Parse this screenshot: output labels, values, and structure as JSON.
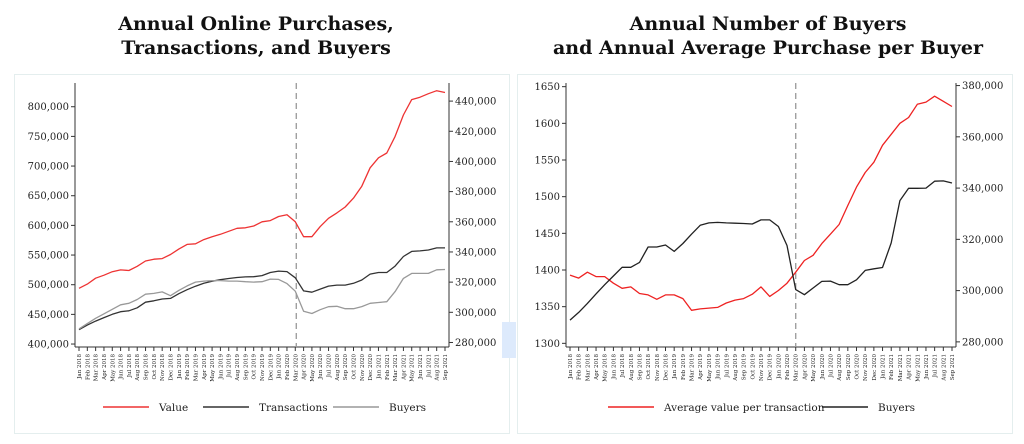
{
  "chart_data": [
    {
      "type": "line",
      "title": "Annual Online Purchases,\nTransactions, and Buyers",
      "title_lines": [
        "Annual Online Purchases,",
        "Transactions, and Buyers"
      ],
      "xlabel": "",
      "x": [
        "Jan 2018",
        "Feb 2018",
        "Mar 2018",
        "Apr 2018",
        "May 2018",
        "Jun 2018",
        "Jul 2018",
        "Aug 2018",
        "Sep 2018",
        "Oct 2018",
        "Nov 2018",
        "Dec 2018",
        "Jan 2019",
        "Feb 2019",
        "Mar 2019",
        "Apr 2019",
        "May 2019",
        "Jun 2019",
        "Jul 2019",
        "Aug 2019",
        "Sep 2019",
        "Oct 2019",
        "Nov 2019",
        "Dec 2019",
        "Jan 2020",
        "Feb 2020",
        "Mar 2020",
        "Apr 2020",
        "May 2020",
        "Jun 2020",
        "Jul 2020",
        "Aug 2020",
        "Sep 2020",
        "Oct 2020",
        "Nov 2020",
        "Dec 2020",
        "Jan 2021",
        "Feb 2021",
        "Mar 2021",
        "Apr 2021",
        "May 2021",
        "Jun 2021",
        "Jul 2021",
        "Aug 2021",
        "Sep 2021"
      ],
      "vline_at": "Mar 2020",
      "y_left": {
        "label": "",
        "lim": [
          395000,
          840000
        ],
        "ticks": [
          400000,
          450000,
          500000,
          550000,
          600000,
          650000,
          700000,
          750000,
          800000
        ],
        "tick_labels": [
          "400,000",
          "450,000",
          "500,000",
          "550,000",
          "600,000",
          "650,000",
          "700,000",
          "750,000",
          "800,000"
        ]
      },
      "y_right": {
        "label": "",
        "lim": [
          277000,
          452000
        ],
        "ticks": [
          280000,
          300000,
          320000,
          340000,
          360000,
          380000,
          400000,
          420000,
          440000
        ],
        "tick_labels": [
          "280,000",
          "300,000",
          "320,000",
          "340,000",
          "360,000",
          "380,000",
          "400,000",
          "420,000",
          "440,000"
        ]
      },
      "series": [
        {
          "name": "Value",
          "axis": "left",
          "color": "#ee3333",
          "values": [
            494000,
            501000,
            511000,
            516000,
            522000,
            525000,
            524000,
            531000,
            540000,
            543000,
            544000,
            551000,
            560000,
            568000,
            569000,
            576000,
            581000,
            585000,
            590000,
            595000,
            596000,
            599000,
            606000,
            608000,
            615000,
            618000,
            606000,
            581000,
            581000,
            598000,
            612000,
            621000,
            631000,
            646000,
            666000,
            697000,
            714000,
            722000,
            750000,
            786000,
            812000,
            816000,
            822000,
            827000,
            824000
          ]
        },
        {
          "name": "Transactions",
          "axis": "right",
          "color": "#333333",
          "values": [
            288500,
            291500,
            294200,
            296500,
            298700,
            300400,
            301000,
            303000,
            306700,
            307600,
            308800,
            309200,
            312300,
            315000,
            317300,
            319200,
            320600,
            321600,
            322400,
            323100,
            323500,
            323600,
            324300,
            326400,
            327300,
            327000,
            322900,
            314200,
            313300,
            315400,
            317400,
            318000,
            318000,
            319200,
            321400,
            325300,
            326400,
            326400,
            330600,
            337000,
            340400,
            340700,
            341300,
            342700,
            342700
          ]
        },
        {
          "name": "Buyers",
          "axis": "right",
          "color": "#999999",
          "values": [
            289000,
            292500,
            296000,
            299000,
            302000,
            305000,
            306000,
            308500,
            312000,
            312500,
            313500,
            311000,
            314500,
            317500,
            320000,
            320700,
            321000,
            321000,
            320700,
            320700,
            320300,
            320000,
            320300,
            322000,
            321800,
            319000,
            314000,
            300700,
            299200,
            301700,
            303700,
            304000,
            302400,
            302400,
            303800,
            306000,
            306500,
            307000,
            313700,
            322500,
            325800,
            325800,
            325800,
            328200,
            328400
          ]
        }
      ],
      "legend": {
        "position": "bottom",
        "entries": [
          "Value",
          "Transactions",
          "Buyers"
        ]
      }
    },
    {
      "type": "line",
      "title": "Annual Number of Buyers\nand Annual Average Purchase per Buyer",
      "title_lines": [
        "Annual Number of Buyers",
        "and Annual Average Purchase per Buyer"
      ],
      "xlabel": "",
      "x": [
        "Jan 2019",
        "Feb 2019",
        "Mar 2019",
        "Apr 2019",
        "May 2019",
        "Jun 2019",
        "Jul 2019",
        "Aug 2019",
        "Sep 2019",
        "Oct 2019",
        "Nov 2019",
        "Dec 2019",
        "Jan 2020",
        "Feb 2020",
        "Mar 2020",
        "Apr 2020",
        "May 2020",
        "Jun 2020",
        "Jul 2020",
        "Aug 2020",
        "Sep 2020",
        "Oct 2020",
        "Nov 2020",
        "Dec 2020",
        "Jan 2021",
        "Feb 2021",
        "Mar 2021",
        "Apr 2021",
        "May 2021",
        "Jun 2021",
        "Jul 2021",
        "Aug 2021",
        "Sep 2021",
        "Oct 2019",
        "Nov 2019",
        "Dec 2019",
        "Jan 2020",
        "Feb 2020",
        "Mar 2020",
        "Apr 2020",
        "May 2020",
        "Jun 2020",
        "Jul 2020",
        "Aug 2020",
        "Sep 2020"
      ],
      "x_labels": [
        "Jan 2018",
        "Feb 2018",
        "Mar 2018",
        "Apr 2018",
        "May 2018",
        "Jun 2018",
        "Jul 2018",
        "Aug 2018",
        "Sep 2018",
        "Oct 2018",
        "Nov 2018",
        "Dec 2018",
        "Jan 2019",
        "Feb 2019",
        "Mar 2019",
        "Apr 2019",
        "May 2019",
        "Jun 2019",
        "Jul 2019",
        "Aug 2019",
        "Sep 2019",
        "Oct 2019",
        "Nov 2019",
        "Dec 2019",
        "Jan 2020",
        "Feb 2020",
        "Mar 2020",
        "Apr 2020",
        "May 2020",
        "Jun 2020",
        "Jul 2020",
        "Aug 2020",
        "Sep 2020",
        "Oct 2020",
        "Nov 2020",
        "Dec 2020",
        "Jan 2021",
        "Feb 2021",
        "Mar 2021",
        "Apr 2021",
        "May 2021",
        "Jun 2021",
        "Jul 2021",
        "Aug 2021",
        "Sep 2021"
      ],
      "vline_at": "Mar 2020",
      "y_left": {
        "label": "",
        "lim": [
          1295,
          1655
        ],
        "ticks": [
          1300,
          1350,
          1400,
          1450,
          1500,
          1550,
          1600,
          1650
        ],
        "tick_labels": [
          "1300",
          "1350",
          "1400",
          "1450",
          "1500",
          "1550",
          "1600",
          "1650"
        ]
      },
      "y_right": {
        "label": "",
        "lim": [
          278000,
          381000
        ],
        "ticks": [
          280000,
          300000,
          320000,
          340000,
          360000,
          380000
        ],
        "tick_labels": [
          "280,000",
          "300,000",
          "320,000",
          "340,000",
          "360,000",
          "380,000"
        ]
      },
      "series": [
        {
          "name": "Average value per transaction",
          "axis": "left",
          "color": "#ee2222",
          "values": [
            1393,
            1389,
            1397,
            1391,
            1391,
            1382,
            1375,
            1377,
            1368,
            1366,
            1360,
            1366,
            1366,
            1361,
            1345,
            1347,
            1348,
            1349,
            1355,
            1359,
            1361,
            1367,
            1377,
            1364,
            1372,
            1382,
            1397,
            1413,
            1420,
            1436,
            1449,
            1462,
            1488,
            1513,
            1533,
            1547,
            1570,
            1585,
            1600,
            1608,
            1626,
            1629,
            1637,
            1630,
            1623
          ]
        },
        {
          "name": "Buyers",
          "axis": "right",
          "color": "#222222",
          "values": [
            288500,
            291500,
            295000,
            298700,
            302300,
            305700,
            309100,
            309100,
            311000,
            317000,
            317000,
            317800,
            315300,
            318400,
            322000,
            325500,
            326400,
            326600,
            326400,
            326300,
            326200,
            326000,
            327600,
            327600,
            325000,
            317600,
            300400,
            298400,
            301000,
            303600,
            303700,
            302300,
            302300,
            304200,
            307900,
            308500,
            309000,
            318600,
            335100,
            339900,
            339900,
            340000,
            342700,
            342800,
            342000
          ]
        }
      ],
      "legend": {
        "position": "bottom",
        "entries": [
          "Average value per transaction",
          "Buyers"
        ]
      }
    }
  ]
}
